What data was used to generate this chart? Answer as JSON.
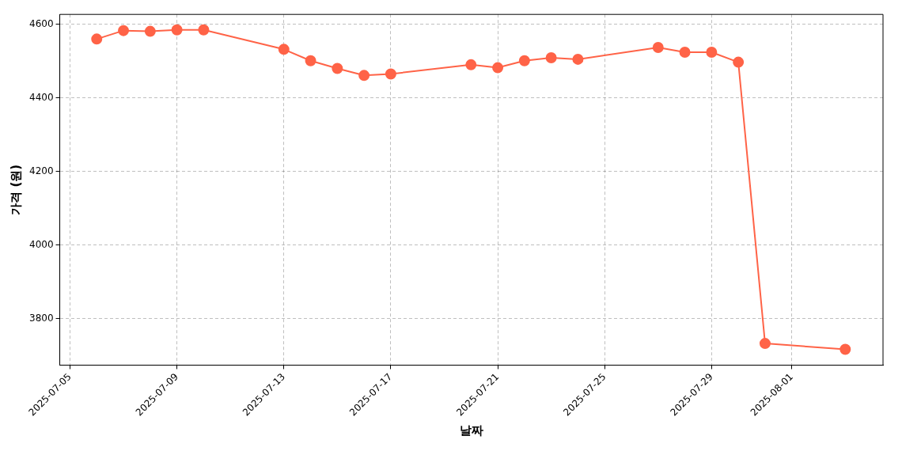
{
  "chart_data": {
    "type": "line",
    "xlabel": "날짜",
    "ylabel": "가격 (원)",
    "x": [
      "2025-07-06",
      "2025-07-07",
      "2025-07-08",
      "2025-07-09",
      "2025-07-10",
      "2025-07-13",
      "2025-07-14",
      "2025-07-15",
      "2025-07-16",
      "2025-07-17",
      "2025-07-20",
      "2025-07-21",
      "2025-07-22",
      "2025-07-23",
      "2025-07-24",
      "2025-07-27",
      "2025-07-28",
      "2025-07-29",
      "2025-07-30",
      "2025-07-31",
      "2025-08-03"
    ],
    "series": [
      {
        "color": "#ff6347",
        "values": [
          4560,
          4583,
          4581,
          4585,
          4585,
          4532,
          4501,
          4480,
          4461,
          4465,
          4490,
          4482,
          4501,
          4509,
          4505,
          4537,
          4524,
          4524,
          4497,
          3732,
          3716
        ]
      }
    ],
    "xlim": [
      "2025-07-04T14:49",
      "2025-08-04T09:53"
    ],
    "xticks": [
      "2025-07-05",
      "2025-07-09",
      "2025-07-13",
      "2025-07-17",
      "2025-07-21",
      "2025-07-25",
      "2025-07-29",
      "2025-08-01"
    ],
    "ylim": [
      3673,
      4627
    ],
    "yticks": [
      3800,
      4000,
      4200,
      4400,
      4600
    ],
    "grid": true,
    "marker": "circle",
    "line_style": "solid"
  }
}
